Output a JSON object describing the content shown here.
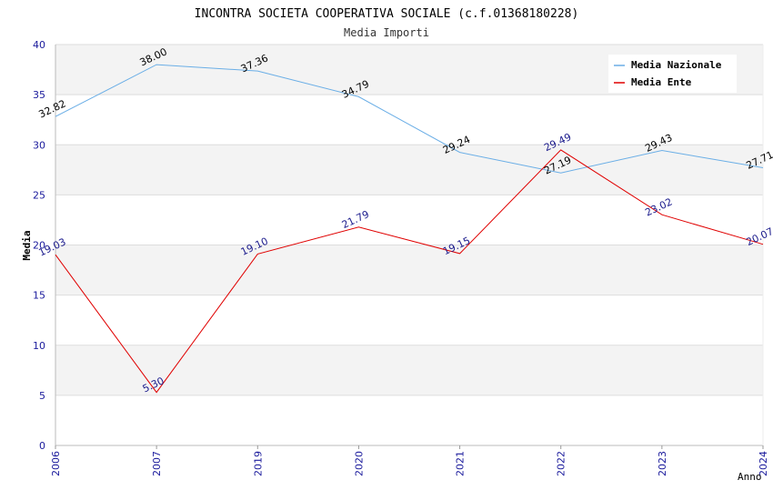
{
  "chart_data": {
    "type": "line",
    "title": "INCONTRA SOCIETA COOPERATIVA SOCIALE (c.f.01368180228)",
    "subtitle": "Media Importi",
    "xlabel": "Anno",
    "ylabel": "Media",
    "ylim": [
      0,
      40
    ],
    "yticks": [
      "0",
      "5",
      "10",
      "15",
      "20",
      "25",
      "30",
      "35",
      "40"
    ],
    "categories": [
      "2006",
      "2007",
      "2019",
      "2020",
      "2021",
      "2022",
      "2023",
      "2024"
    ],
    "grid": true,
    "legend_position": "top-right",
    "series": [
      {
        "name": "Media Nazionale",
        "color": "#6aaee6",
        "label_color": "#000000",
        "values": [
          32.82,
          38.0,
          37.36,
          34.79,
          29.24,
          27.19,
          29.43,
          27.71
        ],
        "labels": [
          "32.82",
          "38.00",
          "37.36",
          "34.79",
          "29.24",
          "27.19",
          "29.43",
          "27.71"
        ]
      },
      {
        "name": "Media Ente",
        "color": "#e00000",
        "label_color": "#1a1a8c",
        "values": [
          19.03,
          5.3,
          19.1,
          21.79,
          19.15,
          29.49,
          23.02,
          20.07
        ],
        "labels": [
          "19.03",
          "5.30",
          "19.10",
          "21.79",
          "19.15",
          "29.49",
          "23.02",
          "20.07"
        ]
      }
    ]
  }
}
